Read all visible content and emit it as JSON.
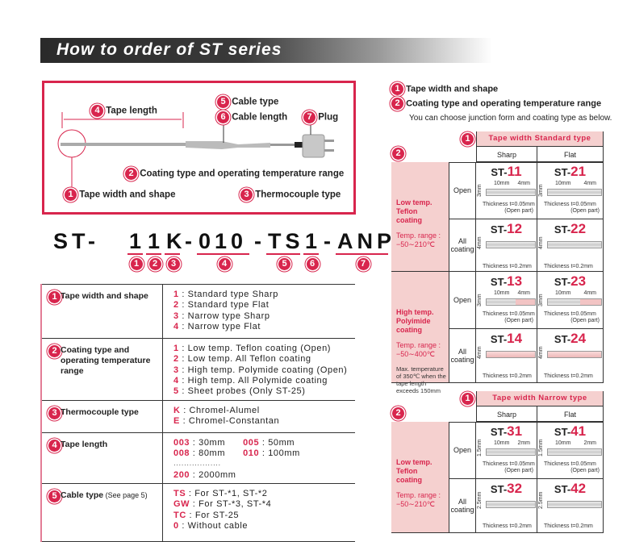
{
  "title": "How to order of ST series",
  "diagram": {
    "labels": [
      {
        "n": "4",
        "t": "Tape length"
      },
      {
        "n": "5",
        "t": "Cable type"
      },
      {
        "n": "6",
        "t": "Cable length"
      },
      {
        "n": "7",
        "t": "Plug"
      },
      {
        "n": "2",
        "t": "Coating type and operating temperature range"
      },
      {
        "n": "1",
        "t": "Tape width and shape"
      },
      {
        "n": "3",
        "t": "Thermocouple type"
      }
    ]
  },
  "part_code": {
    "prefix": "ST-",
    "segments": [
      {
        "t": "1",
        "n": "1"
      },
      {
        "t": "1",
        "n": "2"
      },
      {
        "t": "K",
        "n": "3"
      },
      {
        "t": "-",
        "n": ""
      },
      {
        "t": "010",
        "n": "4"
      },
      {
        "t": "-",
        "n": ""
      },
      {
        "t": "TS",
        "n": "5"
      },
      {
        "t": "1",
        "n": "6"
      },
      {
        "t": "-",
        "n": ""
      },
      {
        "t": "ANP",
        "n": "7"
      }
    ]
  },
  "spec_table": [
    {
      "n": "1",
      "head": "Tape width and shape",
      "note": "",
      "items": [
        [
          "1",
          "Standard type Sharp"
        ],
        [
          "2",
          "Standard type Flat"
        ],
        [
          "3",
          "Narrow type Sharp"
        ],
        [
          "4",
          "Narrow type Flat"
        ]
      ]
    },
    {
      "n": "2",
      "head": "Coating type and operating temperature range",
      "note": "",
      "items": [
        [
          "1",
          "Low temp. Teflon coating (Open)"
        ],
        [
          "2",
          "Low temp. All Teflon coating"
        ],
        [
          "3",
          "High temp. Polymide coating (Open)"
        ],
        [
          "4",
          "High temp. All Polymide coating"
        ],
        [
          "5",
          "Sheet probes (Only ST-25)"
        ]
      ]
    },
    {
      "n": "3",
      "head": "Thermocouple type",
      "note": "",
      "items": [
        [
          "K",
          "Chromel-Alumel"
        ],
        [
          "E",
          "Chromel-Constantan"
        ]
      ]
    },
    {
      "n": "4",
      "head": "Tape length",
      "note": "",
      "items": [
        [
          "003",
          "30mm",
          "005",
          "50mm"
        ],
        [
          "008",
          "80mm",
          "010",
          "100mm"
        ],
        [
          "",
          "··················"
        ],
        [
          "200",
          "2000mm"
        ]
      ]
    },
    {
      "n": "5",
      "head": "Cable type",
      "note": "(See page 5)",
      "items": [
        [
          "TS",
          "For ST-*1, ST-*2"
        ],
        [
          "GW",
          "For ST-*3, ST-*4"
        ],
        [
          "TC",
          "For ST-25"
        ],
        [
          "0",
          "Without cable"
        ]
      ]
    }
  ],
  "right": {
    "headings": [
      {
        "n": "1",
        "t": "Tape width and shape"
      },
      {
        "n": "2",
        "t": "Coating type and operating temperature range"
      }
    ],
    "subtext": "You can choose junction form and coating type as below.",
    "tables": [
      {
        "title": "Tape width Standard type",
        "cols": [
          "Sharp",
          "Flat"
        ],
        "groups": [
          {
            "name": [
              "Low temp.",
              "Teflon",
              "coating"
            ],
            "range": [
              "Temp. range :",
              "−50∼210℃"
            ],
            "note": "",
            "color": "#ccc",
            "rows": [
              {
                "label": "Open",
                "models": [
                  "11",
                  "21"
                ],
                "dims": [
                  "10mm",
                  "4mm",
                  "3mm"
                ],
                "thick": "Thickness  t=0.05mm",
                "sub": "(Open part)"
              },
              {
                "label": "All coating",
                "models": [
                  "12",
                  "22"
                ],
                "dims": [
                  "",
                  "",
                  "4mm"
                ],
                "thick": "Thickness  t=0.2mm",
                "sub": ""
              }
            ]
          },
          {
            "name": [
              "High temp.",
              "Polyimide",
              "coating"
            ],
            "range": [
              "Temp. range :",
              "−50∼400℃"
            ],
            "note": "Max. temperature of 350℃ when the tape length exceeds 150mm",
            "color": "#f0b8b8",
            "rows": [
              {
                "label": "Open",
                "models": [
                  "13",
                  "23"
                ],
                "dims": [
                  "10mm",
                  "4mm",
                  "3mm"
                ],
                "thick": "Thickness  t=0.05mm",
                "sub": "(Open part)"
              },
              {
                "label": "All coating",
                "models": [
                  "14",
                  "24"
                ],
                "dims": [
                  "",
                  "",
                  "4mm"
                ],
                "thick": "Thickness  t=0.2mm",
                "sub": ""
              }
            ]
          }
        ]
      },
      {
        "title": "Tape width Narrow type",
        "cols": [
          "Sharp",
          "Flat"
        ],
        "groups": [
          {
            "name": [
              "Low temp.",
              "Teflon",
              "coating"
            ],
            "range": [
              "Temp. range :",
              "−50∼210℃"
            ],
            "note": "",
            "color": "#ccc",
            "rows": [
              {
                "label": "Open",
                "models": [
                  "31",
                  "41"
                ],
                "dims": [
                  "10mm",
                  "2mm",
                  "1.5mm"
                ],
                "thick": "Thickness  t=0.05mm",
                "sub": "(Open part)"
              },
              {
                "label": "All coating",
                "models": [
                  "32",
                  "42"
                ],
                "dims": [
                  "",
                  "",
                  "2.5mm"
                ],
                "thick": "Thickness  t=0.2mm",
                "sub": ""
              }
            ]
          }
        ]
      }
    ],
    "model_prefix": "ST-"
  },
  "colors": {
    "accent": "#d8254d",
    "pink": "#f5d0cf"
  }
}
